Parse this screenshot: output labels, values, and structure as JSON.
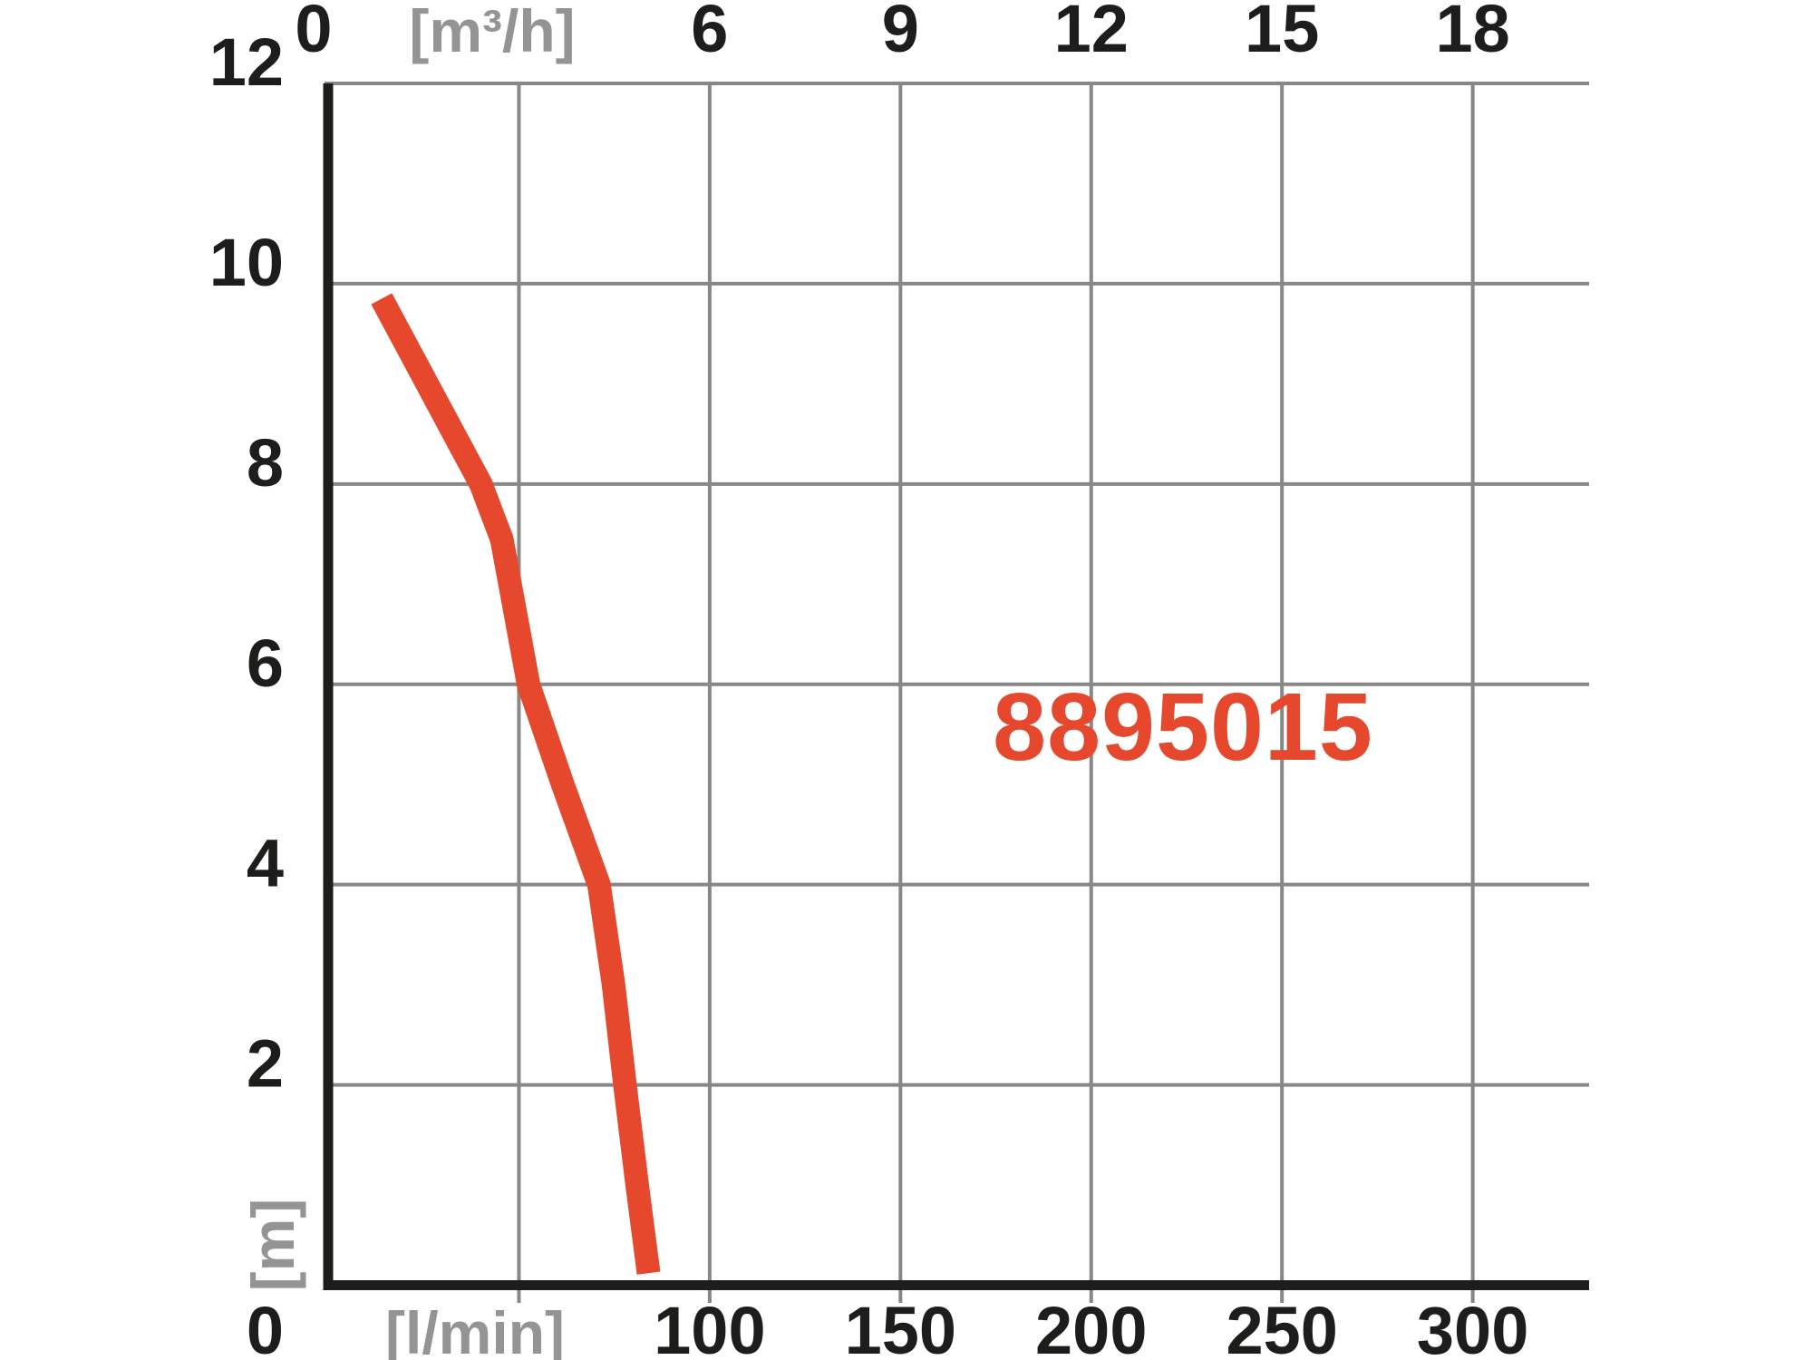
{
  "page": {
    "background": "#ffffff"
  },
  "chart_data": {
    "type": "line",
    "title": "",
    "product_code": "8895015",
    "legend_position": "none",
    "grid": true,
    "axes": {
      "x_top": {
        "unit_label": "[m³/h]",
        "ticks": [
          0,
          3,
          6,
          9,
          12,
          15,
          18
        ],
        "tick_labels": [
          "0",
          "",
          "6",
          "9",
          "12",
          "15",
          "18"
        ],
        "min": 0,
        "max": 19.8
      },
      "x_bottom": {
        "unit_label": "[l/min]",
        "ticks": [
          0,
          50,
          100,
          150,
          200,
          250,
          300
        ],
        "tick_labels": [
          "0",
          "",
          "100",
          "150",
          "200",
          "250",
          "300"
        ],
        "min": 0,
        "max": 330
      },
      "y_left": {
        "unit_label": "[m]",
        "ticks": [
          0,
          2,
          4,
          6,
          8,
          10,
          12
        ],
        "tick_labels": [
          "0",
          "2",
          "4",
          "6",
          "8",
          "10",
          "12"
        ],
        "min": 0,
        "max": 12
      }
    },
    "series": [
      {
        "name": "8895015",
        "x_unit": "l/min",
        "y_unit": "m",
        "points": [
          [
            14,
            9.85
          ],
          [
            40,
            8.0
          ],
          [
            45.5,
            7.45
          ],
          [
            52.5,
            6.0
          ],
          [
            61.5,
            5.0
          ],
          [
            71,
            4.0
          ],
          [
            74.8,
            3.0
          ],
          [
            77.8,
            2.0
          ],
          [
            81,
            1.0
          ],
          [
            84,
            0.12
          ]
        ]
      }
    ],
    "colors": {
      "curve": "#e5482d",
      "code_text": "#e5482d",
      "grid": "#878787",
      "axis": "#1d1d1b",
      "tick_text": "#1d1d1b",
      "unit_text": "#949493"
    }
  }
}
